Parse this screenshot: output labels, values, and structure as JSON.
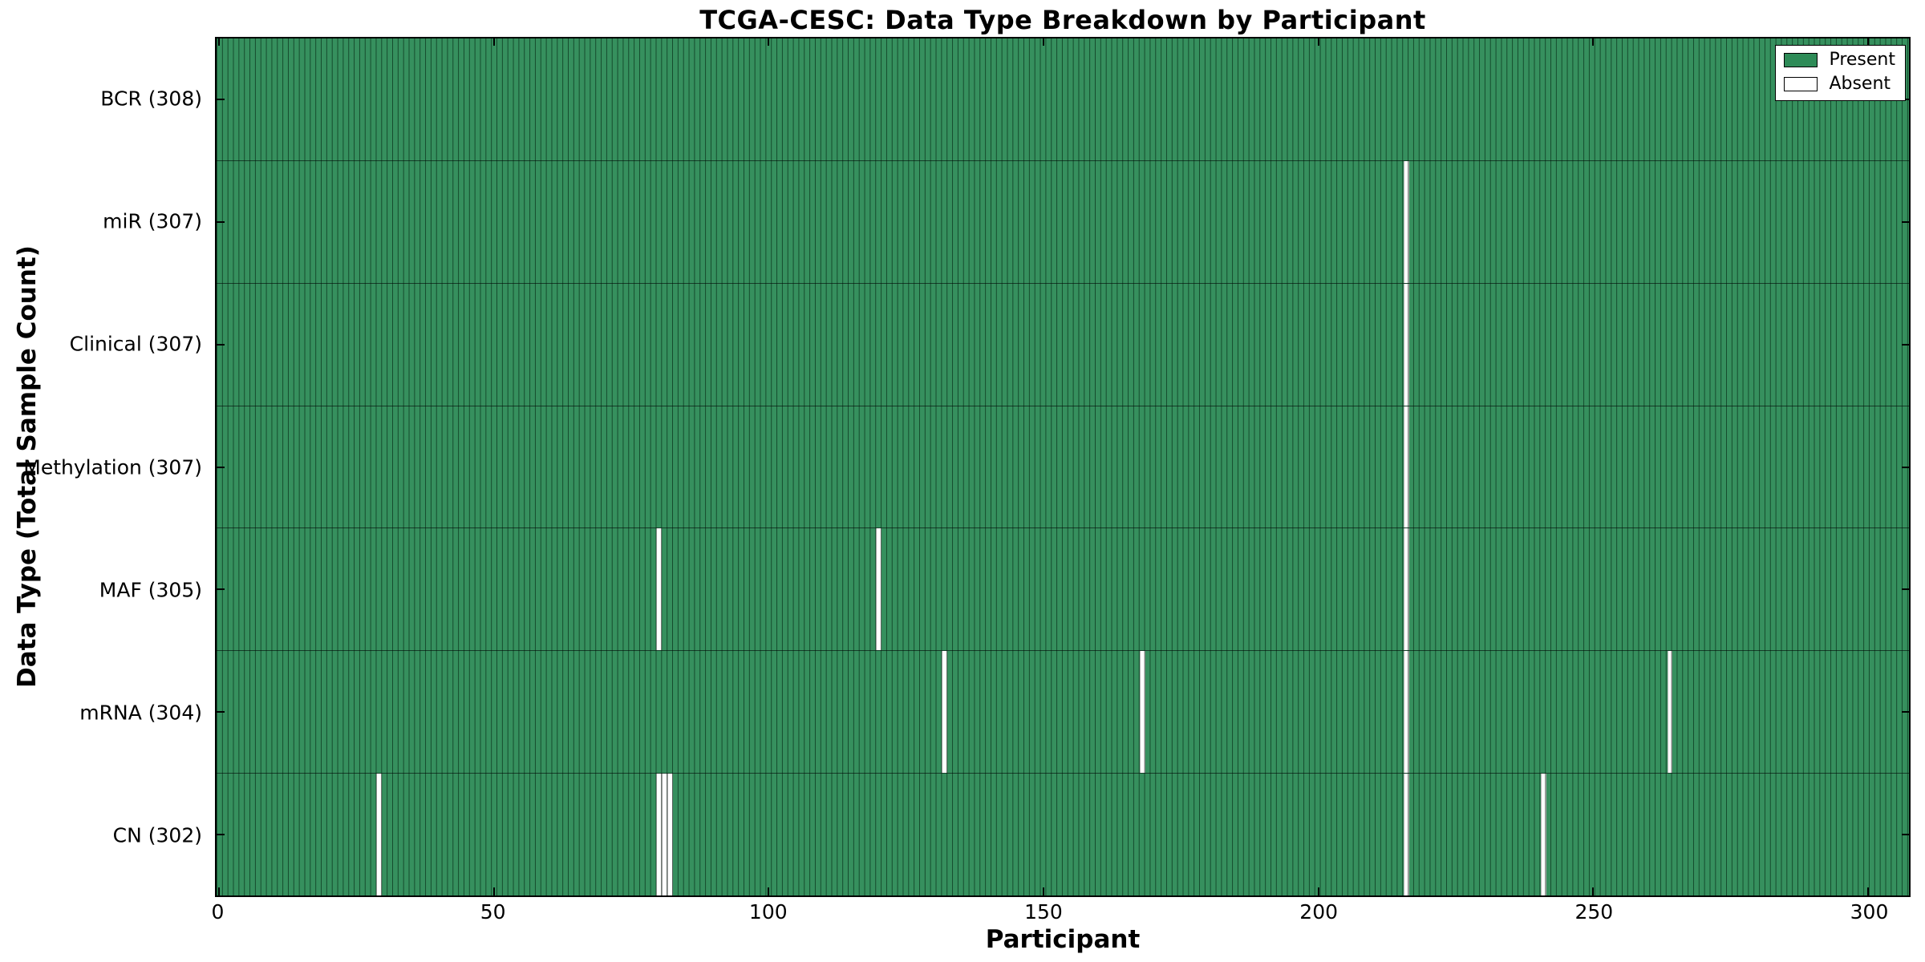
{
  "chart_data": {
    "type": "heatmap",
    "title": "TCGA-CESC: Data Type Breakdown by Participant",
    "xlabel": "Participant",
    "ylabel": "Data Type (Total Sample Count)",
    "x_ticks": [
      0,
      50,
      100,
      150,
      200,
      250,
      300
    ],
    "x_range": [
      -0.5,
      307.5
    ],
    "n_participants": 308,
    "grid": false,
    "legend_position": "upper right",
    "legend": [
      {
        "label": "Present",
        "color": "#2e8b57"
      },
      {
        "label": "Absent",
        "color": "#ffffff"
      }
    ],
    "rows": [
      {
        "label": "BCR (308)",
        "data_type": "BCR",
        "total": 308,
        "absent_participants": []
      },
      {
        "label": "miR (307)",
        "data_type": "miR",
        "total": 307,
        "absent_participants": [
          216
        ]
      },
      {
        "label": "Clinical (307)",
        "data_type": "Clinical",
        "total": 307,
        "absent_participants": [
          216
        ]
      },
      {
        "label": "Methylation (307)",
        "data_type": "Methylation",
        "total": 307,
        "absent_participants": [
          216
        ]
      },
      {
        "label": "MAF (305)",
        "data_type": "MAF",
        "total": 305,
        "absent_participants": [
          80,
          120,
          216
        ]
      },
      {
        "label": "mRNA (304)",
        "data_type": "mRNA",
        "total": 304,
        "absent_participants": [
          132,
          168,
          216,
          264
        ]
      },
      {
        "label": "CN (302)",
        "data_type": "CN",
        "total": 302,
        "absent_participants": [
          29,
          80,
          81,
          82,
          216,
          241
        ]
      }
    ],
    "colors": {
      "present": "#2e8b57",
      "absent": "#ffffff",
      "edge": "#000000",
      "background": "#ffffff"
    }
  }
}
